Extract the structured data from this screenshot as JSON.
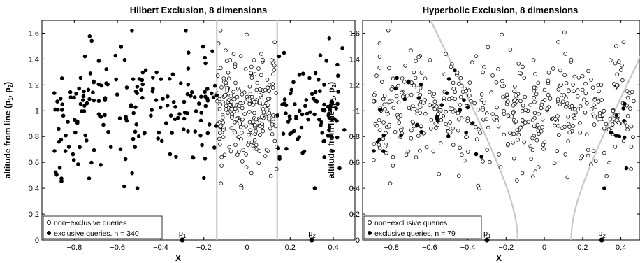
{
  "chart_data": [
    {
      "type": "scatter",
      "title": "Hilbert Exclusion, 8 dimensions",
      "xlabel": "X",
      "ylabel": "altitude from line (p1, p2)",
      "xlim": [
        -0.95,
        0.5
      ],
      "ylim": [
        0,
        1.7
      ],
      "xticks": [
        -0.8,
        -0.6,
        -0.4,
        -0.2,
        0,
        0.2,
        0.4
      ],
      "xtick_labels": [
        "−0.8",
        "−0.6",
        "−0.4",
        "−0.2",
        "0",
        "0.2",
        "0.4"
      ],
      "yticks": [
        0,
        0.2,
        0.4,
        0.6,
        0.8,
        1,
        1.2,
        1.4,
        1.6
      ],
      "ytick_labels": [
        "0",
        "0.2",
        "0.4",
        "0.6",
        "0.8",
        "1",
        "1.2",
        "1.4",
        "1.6"
      ],
      "legend": {
        "placement": "lower-left",
        "entries": [
          "non−exclusive queries",
          "exclusive queries, n = 340"
        ]
      },
      "grid": false,
      "pivots": [
        {
          "label": "p",
          "sub": "1",
          "x": -0.3
        },
        {
          "label": "p",
          "sub": "2",
          "x": 0.3
        }
      ],
      "boundary": {
        "kind": "vertical",
        "x": [
          -0.14,
          0.14
        ],
        "color": "#c8c8c8"
      },
      "series": [
        {
          "name": "non−exclusive queries",
          "marker": "open-circle",
          "seed": 17,
          "n": 240,
          "x_range": [
            -0.14,
            0.14
          ],
          "y_mean": 1.0,
          "y_sd": 0.22
        },
        {
          "name": "exclusive queries, n = 340",
          "marker": "filled-circle",
          "seed": 29,
          "n": 340,
          "x_range": [
            -0.9,
            0.47
          ],
          "y_mean": 1.0,
          "y_sd": 0.24
        }
      ]
    },
    {
      "type": "scatter",
      "title": "Hyperbolic Exclusion, 8 dimensions",
      "xlabel": "X",
      "ylabel": "altitude from line (p1, p2)",
      "xlim": [
        -0.95,
        0.5
      ],
      "ylim": [
        0,
        1.7
      ],
      "xticks": [
        -0.8,
        -0.6,
        -0.4,
        -0.2,
        0,
        0.2,
        0.4
      ],
      "xtick_labels": [
        "−0.8",
        "−0.6",
        "−0.4",
        "−0.2",
        "0",
        "0.2",
        "0.4"
      ],
      "yticks": [
        0,
        0.2,
        0.4,
        0.6,
        0.8,
        1,
        1.2,
        1.4,
        1.6
      ],
      "ytick_labels": [
        "0",
        "0.2",
        "0.4",
        "0.6",
        "0.8",
        "1",
        "1.2",
        "1.4",
        "1.6"
      ],
      "legend": {
        "placement": "lower-left",
        "entries": [
          "non−exclusive queries",
          "exclusive queries, n = 79"
        ]
      },
      "grid": false,
      "pivots": [
        {
          "label": "p",
          "sub": "1",
          "x": -0.3
        },
        {
          "label": "p",
          "sub": "2",
          "x": 0.3
        }
      ],
      "boundary": {
        "kind": "hyperbola",
        "a": 0.14,
        "k": 0.34,
        "color": "#c8c8c8"
      },
      "series": [
        {
          "name": "non−exclusive queries",
          "marker": "open-circle",
          "seed": 17,
          "n": 501,
          "x_range": [
            -0.9,
            0.47
          ],
          "y_mean": 1.0,
          "y_sd": 0.22
        },
        {
          "name": "exclusive queries, n = 79",
          "marker": "filled-circle",
          "seed": 29,
          "n": 79,
          "x_range": [
            -0.9,
            0.47
          ],
          "y_mean": 1.0,
          "y_sd": 0.24
        }
      ]
    }
  ]
}
